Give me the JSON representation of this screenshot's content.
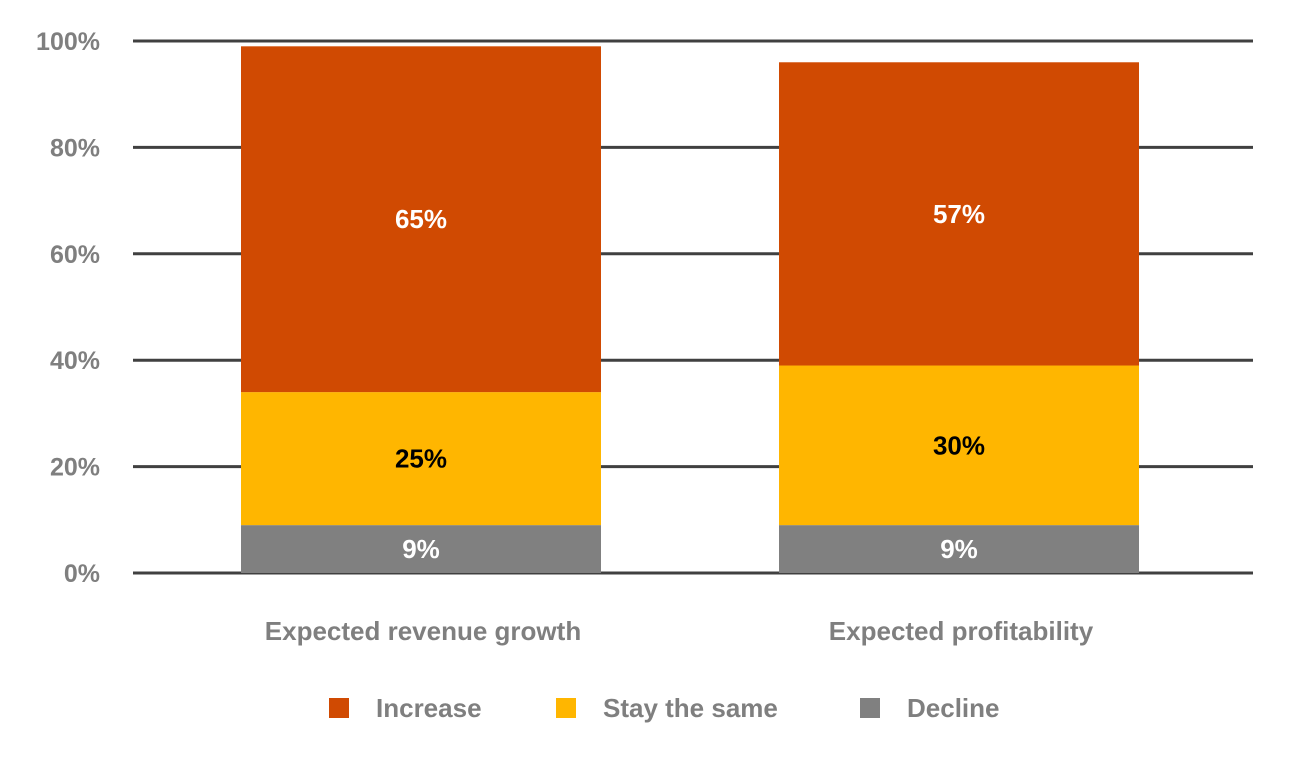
{
  "chart_data": {
    "type": "bar",
    "stacked": true,
    "categories": [
      "Expected revenue growth",
      "Expected profitability"
    ],
    "series": [
      {
        "name": "Decline",
        "values": [
          9,
          9
        ],
        "labels": [
          "9%",
          "9%"
        ],
        "color": "#808080",
        "label_color": "#ffffff"
      },
      {
        "name": "Stay the same",
        "values": [
          25,
          30
        ],
        "labels": [
          "25%",
          "30%"
        ],
        "color": "#ffb600",
        "label_color": "#000000"
      },
      {
        "name": "Increase",
        "values": [
          65,
          57
        ],
        "labels": [
          "65%",
          "57%"
        ],
        "color": "#d04a02",
        "label_color": "#ffffff"
      }
    ],
    "ylim": [
      0,
      100
    ],
    "yticks": [
      0,
      20,
      40,
      60,
      80,
      100
    ],
    "ytick_labels": [
      "0%",
      "20%",
      "40%",
      "60%",
      "80%",
      "100%"
    ],
    "grid": true,
    "gridline_color": "#404040",
    "legend": {
      "position": "bottom",
      "order": [
        "Increase",
        "Stay the same",
        "Decline"
      ]
    },
    "title": "",
    "xlabel": "",
    "ylabel": ""
  }
}
